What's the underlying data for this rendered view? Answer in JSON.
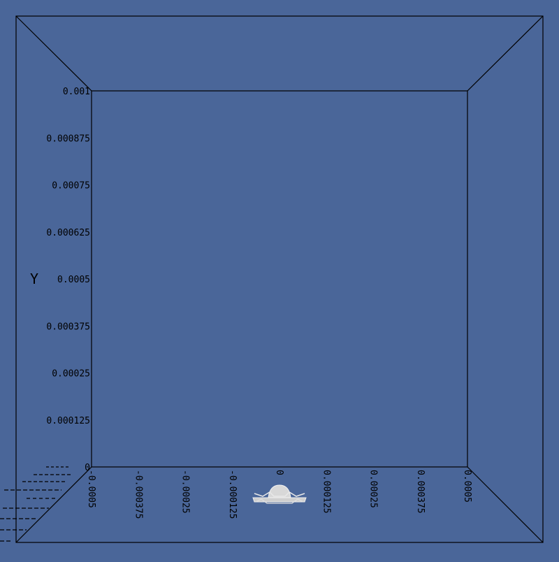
{
  "scene": {
    "background_color": "#4a6699",
    "y_axis": {
      "title": "Y",
      "ticks": [
        "0.001",
        "0.000875",
        "0.00075",
        "0.000625",
        "0.0005",
        "0.000375",
        "0.00025",
        "0.000125",
        "0"
      ]
    },
    "x_axis": {
      "ticks": [
        "-0.0005",
        "-0.000375",
        "-0.00025",
        "-0.000125",
        "0",
        "0.000125",
        "0.00025",
        "0.000375",
        "0.0005"
      ]
    },
    "object": {
      "icon": "droplet-mesh-icon",
      "color": "#d8d8d8"
    }
  }
}
